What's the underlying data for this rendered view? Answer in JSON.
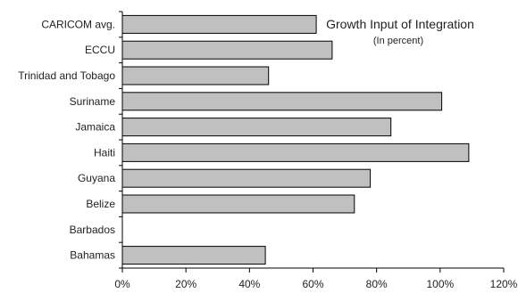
{
  "chart_data": {
    "type": "bar",
    "orientation": "horizontal",
    "title": "Growth Input of Integration",
    "subtitle": "(In percent)",
    "categories": [
      "CARICOM avg.",
      "ECCU",
      "Trinidad and Tobago",
      "Suriname",
      "Jamaica",
      "Haiti",
      "Guyana",
      "Belize",
      "Barbados",
      "Bahamas"
    ],
    "values": [
      61,
      66,
      46,
      100.5,
      84.5,
      109,
      78,
      73,
      0,
      45
    ],
    "xlim": [
      0,
      120
    ],
    "x_ticks": [
      "0%",
      "20%",
      "40%",
      "60%",
      "80%",
      "100%",
      "120%"
    ],
    "grid": false,
    "bar_fill": "#c0c0c0",
    "bar_stroke": "#000000"
  }
}
